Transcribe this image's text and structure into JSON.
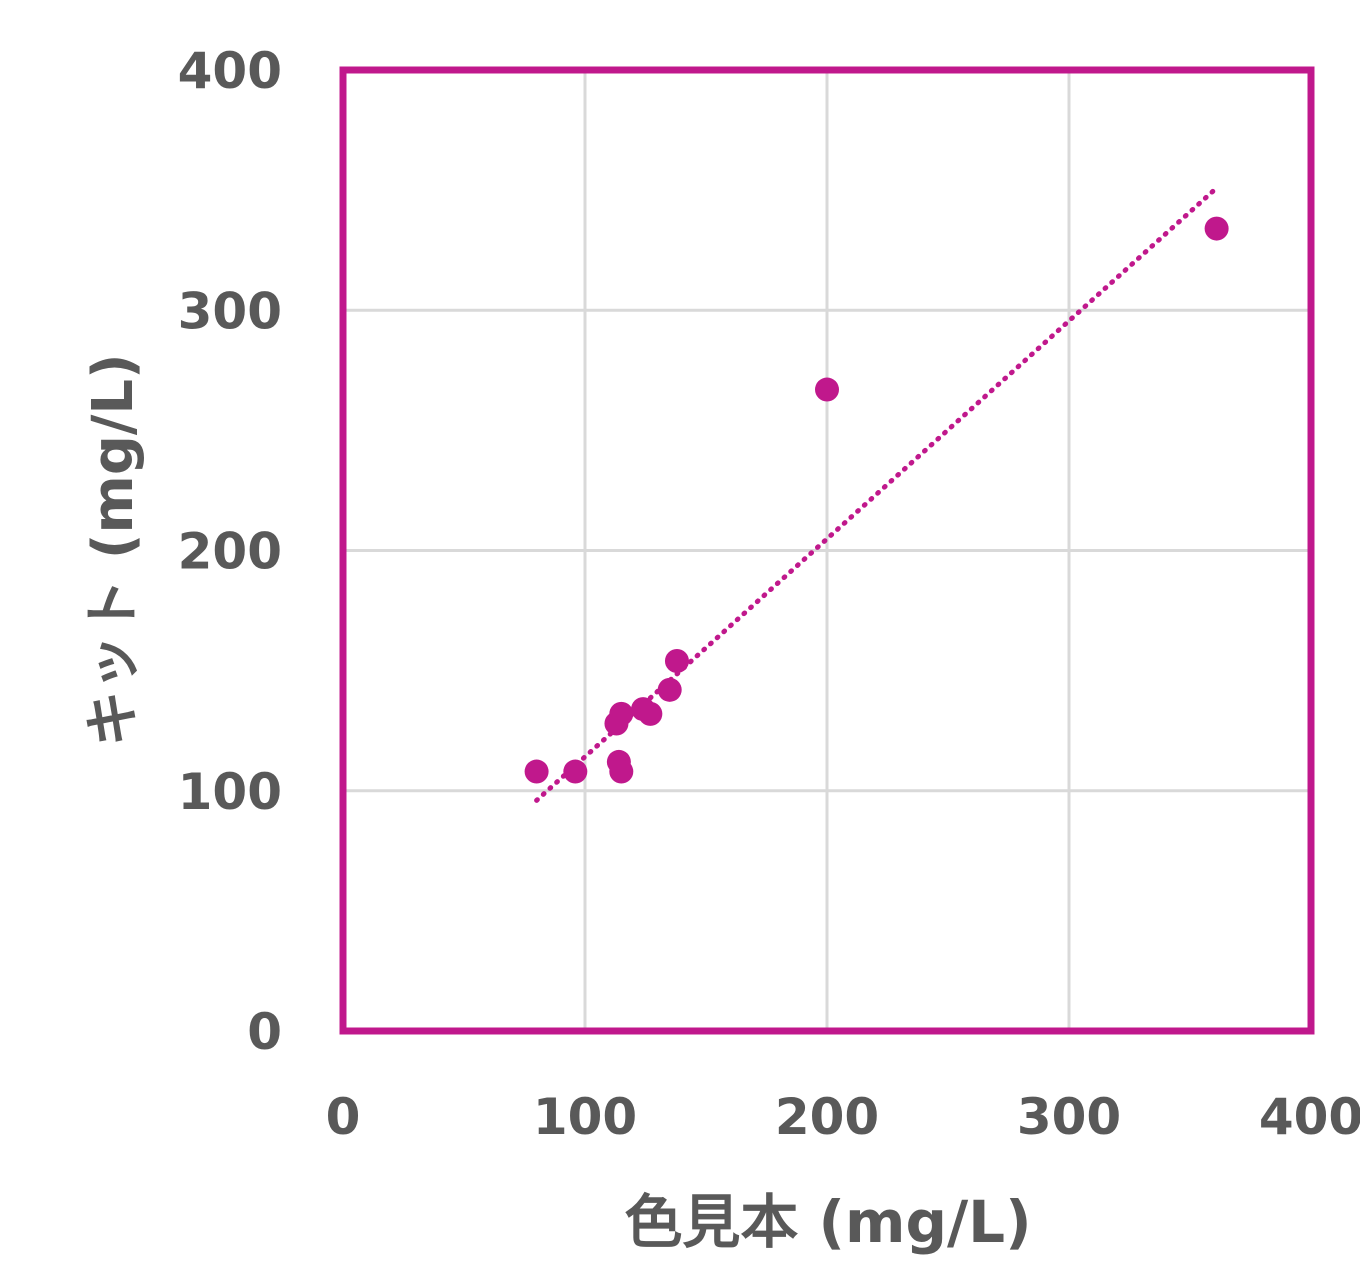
{
  "chart_data": {
    "type": "scatter",
    "title": "",
    "xlabel": "色見本 (mg/L)",
    "ylabel": "キット (mg/L)",
    "xlim": [
      0,
      400
    ],
    "ylim": [
      0,
      400
    ],
    "x_ticks": [
      0,
      100,
      200,
      300,
      400
    ],
    "y_ticks": [
      0,
      100,
      200,
      300,
      400
    ],
    "grid": true,
    "legend": "none",
    "colors": {
      "marker": "#C0188C",
      "frame": "#C0188C",
      "trendline": "#C0188C",
      "grid": "#D9D9D9",
      "text": "#595959"
    },
    "series": [
      {
        "points": [
          {
            "x": 80,
            "y": 108
          },
          {
            "x": 96,
            "y": 108
          },
          {
            "x": 113,
            "y": 128
          },
          {
            "x": 115,
            "y": 132
          },
          {
            "x": 114,
            "y": 112
          },
          {
            "x": 115,
            "y": 108
          },
          {
            "x": 124,
            "y": 134
          },
          {
            "x": 127,
            "y": 132
          },
          {
            "x": 135,
            "y": 142
          },
          {
            "x": 138,
            "y": 154
          },
          {
            "x": 200,
            "y": 267
          },
          {
            "x": 361,
            "y": 334
          }
        ]
      }
    ],
    "trendline": {
      "style": "dotted",
      "from": {
        "x": 80,
        "y": 96
      },
      "to": {
        "x": 360,
        "y": 350
      }
    }
  }
}
